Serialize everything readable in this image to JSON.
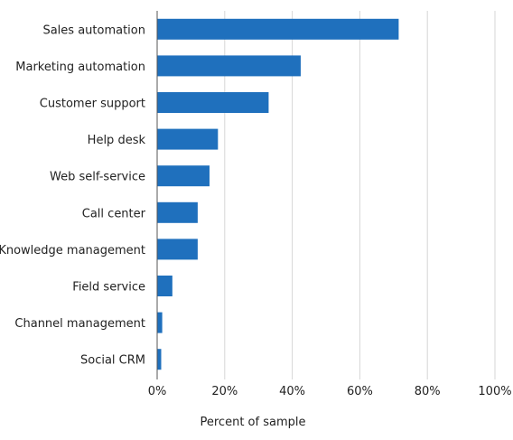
{
  "chart_data": {
    "type": "bar",
    "orientation": "horizontal",
    "categories": [
      "Sales automation",
      "Marketing automation",
      "Customer support",
      "Help desk",
      "Web self-service",
      "Call center",
      "Knowledge management",
      "Field service",
      "Channel management",
      "Social CRM"
    ],
    "values": [
      71.5,
      42.5,
      33,
      18,
      15.5,
      12,
      12,
      4.5,
      1.5,
      1.2
    ],
    "xlabel": "Percent of sample",
    "ylabel": "",
    "xlim": [
      0,
      100
    ],
    "ticks": [
      0,
      20,
      40,
      60,
      80,
      100
    ],
    "tick_labels": [
      "0%",
      "20%",
      "40%",
      "60%",
      "80%",
      "100%"
    ],
    "grid": "vertical",
    "legend": "none",
    "bar_color": "#1f70bd"
  }
}
